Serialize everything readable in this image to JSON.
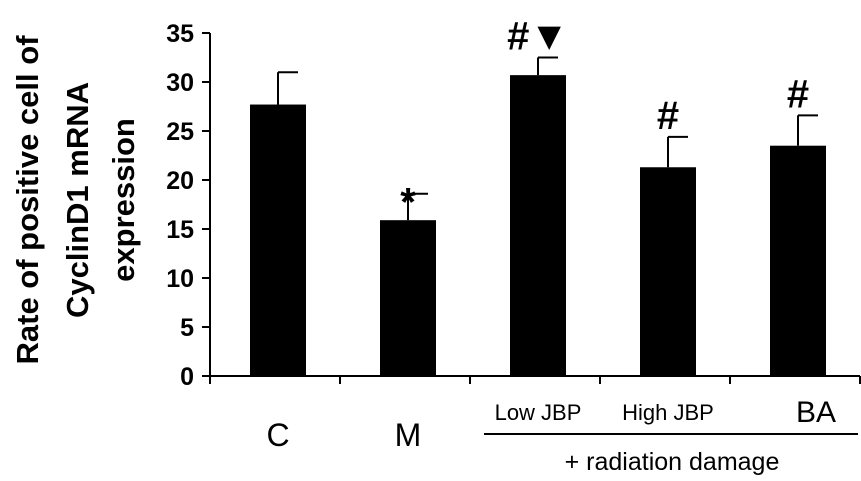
{
  "chart_data": {
    "type": "bar",
    "ylabel_lines": [
      "Rate of positive cell of",
      "CyclinD1 mRNA",
      "expression"
    ],
    "ylim": [
      0,
      35
    ],
    "yticks": [
      "0",
      "5",
      "10",
      "15",
      "20",
      "25",
      "30",
      "35"
    ],
    "categories": [
      "C",
      "M",
      "Low JBP",
      "High JBP",
      "BA"
    ],
    "values": [
      27.7,
      15.9,
      30.7,
      21.3,
      23.5
    ],
    "errors": [
      3.3,
      2.7,
      1.8,
      3.1,
      3.1
    ],
    "annotations": [
      "",
      "*",
      "#▼",
      "#",
      "#"
    ],
    "group_label": "+ radiation damage",
    "grid": false,
    "bar_color": "#000000"
  }
}
